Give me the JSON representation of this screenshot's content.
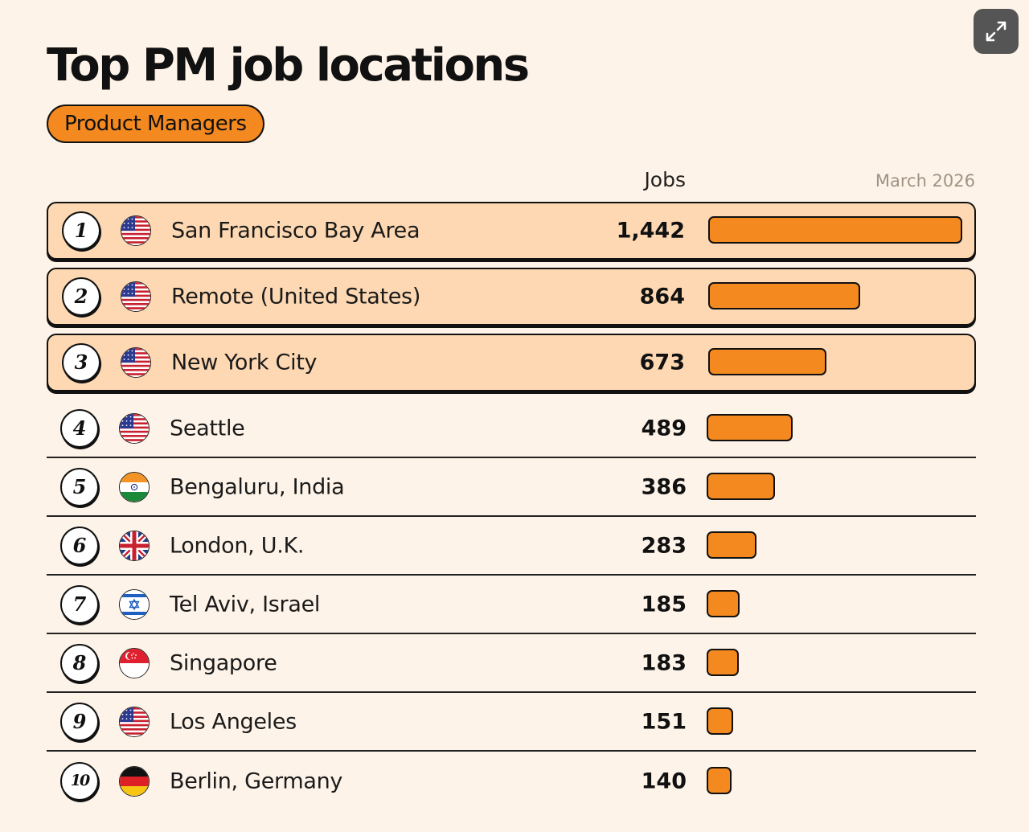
{
  "header": {
    "title": "Top PM job locations",
    "pill": "Product Managers",
    "column_label": "Jobs",
    "date": "March 2026"
  },
  "colors": {
    "background": "#fdf3e8",
    "accent": "#f3891f",
    "highlight_row": "#fdd8b2",
    "expand_button": "#555555"
  },
  "icons": {
    "expand": "expand-arrows-icon"
  },
  "chart_data": {
    "type": "bar",
    "orientation": "horizontal",
    "title": "Top PM job locations",
    "subtitle": "Product Managers",
    "value_label": "Jobs",
    "xlim": [
      0,
      1442
    ],
    "grid": false,
    "legend": "none",
    "categories": [
      "San Francisco Bay Area",
      "Remote (United States)",
      "New York City",
      "Seattle",
      "Bengaluru, India",
      "London, U.K.",
      "Tel Aviv, Israel",
      "Singapore",
      "Los Angeles",
      "Berlin, Germany"
    ],
    "values": [
      1442,
      864,
      673,
      489,
      386,
      283,
      185,
      183,
      151,
      140
    ],
    "rows": [
      {
        "rank": "1",
        "flag": "us-flag-icon",
        "label": "San Francisco Bay Area",
        "value_text": "1,442",
        "value": 1442,
        "highlight": true
      },
      {
        "rank": "2",
        "flag": "us-flag-icon",
        "label": "Remote (United States)",
        "value_text": "864",
        "value": 864,
        "highlight": true
      },
      {
        "rank": "3",
        "flag": "us-flag-icon",
        "label": "New York City",
        "value_text": "673",
        "value": 673,
        "highlight": true
      },
      {
        "rank": "4",
        "flag": "us-flag-icon",
        "label": "Seattle",
        "value_text": "489",
        "value": 489,
        "highlight": false
      },
      {
        "rank": "5",
        "flag": "india-flag-icon",
        "label": "Bengaluru, India",
        "value_text": "386",
        "value": 386,
        "highlight": false
      },
      {
        "rank": "6",
        "flag": "uk-flag-icon",
        "label": "London, U.K.",
        "value_text": "283",
        "value": 283,
        "highlight": false
      },
      {
        "rank": "7",
        "flag": "israel-flag-icon",
        "label": "Tel Aviv, Israel",
        "value_text": "185",
        "value": 185,
        "highlight": false
      },
      {
        "rank": "8",
        "flag": "singapore-flag-icon",
        "label": "Singapore",
        "value_text": "183",
        "value": 183,
        "highlight": false
      },
      {
        "rank": "9",
        "flag": "us-flag-icon",
        "label": "Los Angeles",
        "value_text": "151",
        "value": 151,
        "highlight": false
      },
      {
        "rank": "10",
        "flag": "germany-flag-icon",
        "label": "Berlin, Germany",
        "value_text": "140",
        "value": 140,
        "highlight": false
      }
    ]
  }
}
